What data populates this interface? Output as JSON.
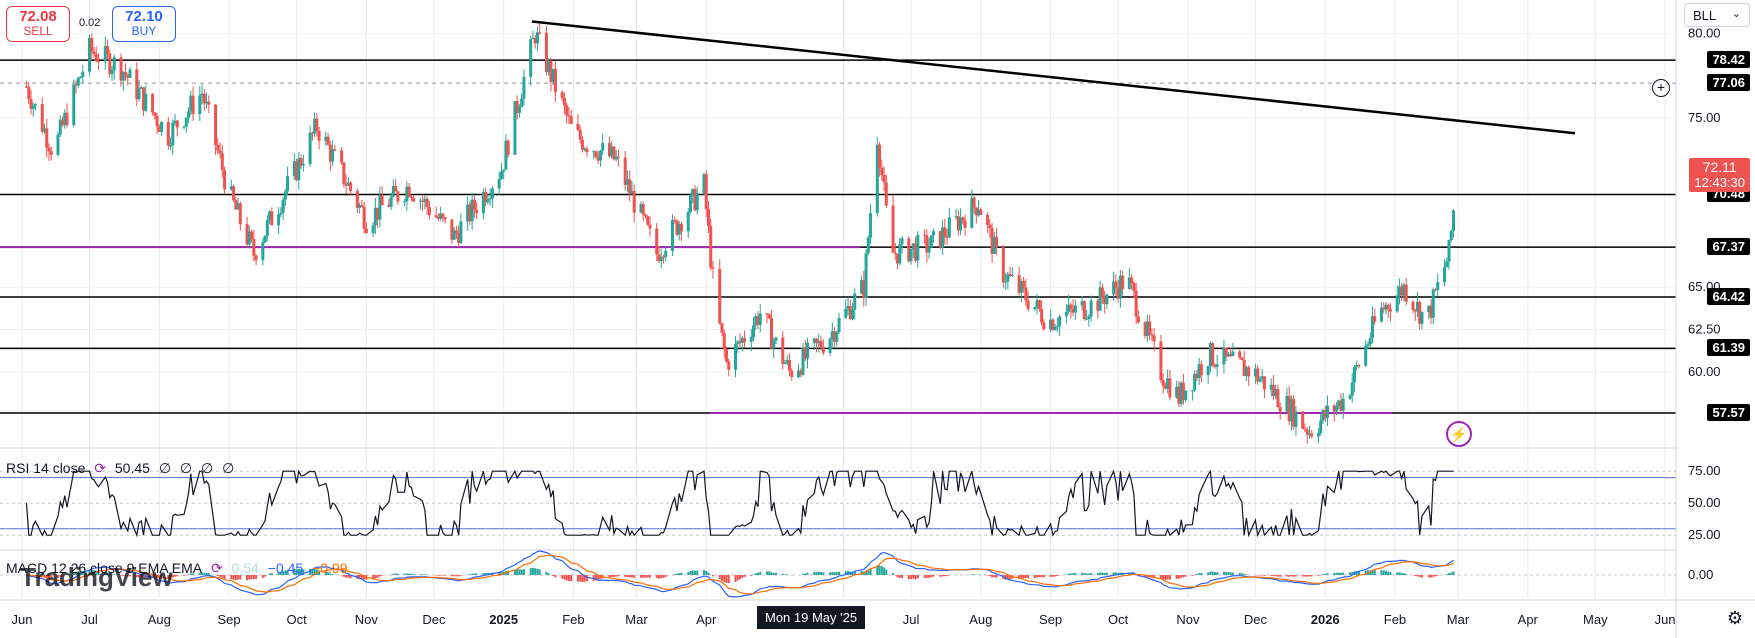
{
  "toolbar": {
    "sell_price": "72.08",
    "sell_label": "SELL",
    "spread": "0.02",
    "buy_price": "72.10",
    "buy_label": "BUY",
    "symbol": "BLL"
  },
  "indicators": {
    "rsi_title": "RSI 14 close",
    "rsi_value": "50.45",
    "rsi_extra": [
      "∅",
      "∅",
      "∅",
      "∅"
    ],
    "macd_title": "MACD 12 26 close 9 EMA EMA",
    "macd_hist": "0.54",
    "macd_line": "−0.45",
    "macd_signal": "−0.99"
  },
  "crosshair_date": "Mon 19 May '25",
  "watermark": "TradingView",
  "current_price": {
    "value": "72.11",
    "countdown": "12:43:30"
  },
  "colors": {
    "up": "#26a69a",
    "down": "#ef5350",
    "level": "#000000",
    "support": "#9c27b0",
    "rsi_band": "#5b6fd6",
    "macd": "#2962ff",
    "signal": "#ff6d00",
    "badge": "#000000",
    "price_badge": "#ef5350"
  },
  "chart_data": [
    {
      "type": "candlestick",
      "x_axis_labels": [
        "Jun",
        "Jul",
        "Aug",
        "Sep",
        "Oct",
        "Nov",
        "Dec",
        "2025",
        "Feb",
        "Mar",
        "Apr",
        "Jun",
        "Jul",
        "Aug",
        "Sep",
        "Oct",
        "Nov",
        "Dec",
        "2026",
        "Feb",
        "Mar",
        "Apr",
        "May",
        "Jun"
      ],
      "y_axis_ticks": [
        "80.00",
        "75.00",
        "65.00",
        "62.50",
        "60.00"
      ],
      "ylim": [
        55.5,
        81.5
      ],
      "horizontal_levels": [
        "78.42",
        "77.06",
        "70.48",
        "67.37",
        "64.42",
        "61.39",
        "57.57"
      ],
      "anchors": [
        {
          "date": "2024-06-01",
          "close": 77.5
        },
        {
          "date": "2024-06-15",
          "close": 73.0
        },
        {
          "date": "2024-07-01",
          "close": 79.0
        },
        {
          "date": "2024-07-15",
          "close": 78.0
        },
        {
          "date": "2024-08-05",
          "close": 74.0
        },
        {
          "date": "2024-08-20",
          "close": 76.5
        },
        {
          "date": "2024-09-01",
          "close": 70.5
        },
        {
          "date": "2024-09-12",
          "close": 67.0
        },
        {
          "date": "2024-10-01",
          "close": 72.0
        },
        {
          "date": "2024-10-10",
          "close": 74.5
        },
        {
          "date": "2024-11-01",
          "close": 69.0
        },
        {
          "date": "2024-11-20",
          "close": 71.0
        },
        {
          "date": "2024-12-10",
          "close": 68.0
        },
        {
          "date": "2024-12-31",
          "close": 72.0
        },
        {
          "date": "2025-01-15",
          "close": 80.0
        },
        {
          "date": "2025-02-01",
          "close": 74.0
        },
        {
          "date": "2025-02-20",
          "close": 72.5
        },
        {
          "date": "2025-03-10",
          "close": 67.0
        },
        {
          "date": "2025-03-31",
          "close": 71.0
        },
        {
          "date": "2025-04-05",
          "close": 64.0
        },
        {
          "date": "2025-04-10",
          "close": 60.5
        },
        {
          "date": "2025-04-25",
          "close": 63.5
        },
        {
          "date": "2025-05-08",
          "close": 60.0
        },
        {
          "date": "2025-05-25",
          "close": 62.0
        },
        {
          "date": "2025-06-10",
          "close": 65.0
        },
        {
          "date": "2025-06-16",
          "close": 74.0
        },
        {
          "date": "2025-06-22",
          "close": 67.0
        },
        {
          "date": "2025-07-10",
          "close": 67.5
        },
        {
          "date": "2025-07-31",
          "close": 70.0
        },
        {
          "date": "2025-08-10",
          "close": 66.0
        },
        {
          "date": "2025-08-31",
          "close": 63.0
        },
        {
          "date": "2025-09-20",
          "close": 64.0
        },
        {
          "date": "2025-10-05",
          "close": 65.5
        },
        {
          "date": "2025-10-20",
          "close": 60.0
        },
        {
          "date": "2025-10-28",
          "close": 58.5
        },
        {
          "date": "2025-11-10",
          "close": 61.0
        },
        {
          "date": "2025-11-30",
          "close": 60.0
        },
        {
          "date": "2025-12-15",
          "close": 58.0
        },
        {
          "date": "2025-12-25",
          "close": 56.5
        },
        {
          "date": "2026-01-10",
          "close": 58.5
        },
        {
          "date": "2026-01-25",
          "close": 63.5
        },
        {
          "date": "2026-02-05",
          "close": 65.0
        },
        {
          "date": "2026-02-15",
          "close": 63.0
        },
        {
          "date": "2026-02-25",
          "close": 67.0
        },
        {
          "date": "2026-03-01",
          "close": 72.11
        }
      ]
    },
    {
      "type": "line",
      "name": "RSI",
      "y_axis_ticks": [
        "75.00",
        "50.00",
        "25.00"
      ],
      "ylim": [
        15,
        90
      ],
      "bands": [
        70,
        30
      ],
      "last": 50.45
    },
    {
      "type": "line",
      "name": "MACD",
      "y_axis_ticks": [
        "0.00"
      ],
      "ylim": [
        -2.5,
        2.5
      ]
    }
  ]
}
